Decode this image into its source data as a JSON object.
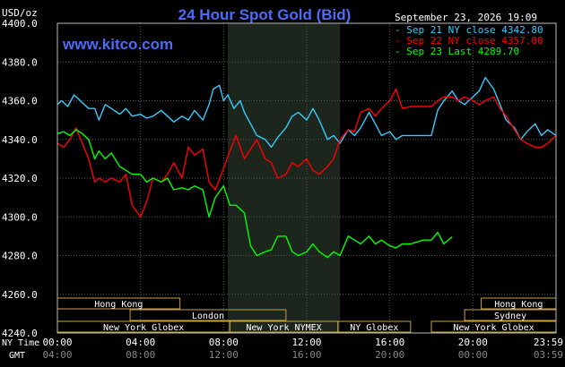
{
  "chart_data": {
    "type": "line",
    "title": "24 Hour Spot Gold (Bid)",
    "watermark": "www.kitco.com",
    "timestamp": "September 23, 2026 19:09",
    "y_unit": "USD/oz",
    "ylim": [
      4240,
      4400
    ],
    "y_ticks": [
      "4400.0",
      "4380.0",
      "4360.0",
      "4340.0",
      "4320.0",
      "4300.0",
      "4280.0",
      "4260.0",
      "4240.0"
    ],
    "x_range_hours": [
      0,
      24
    ],
    "x_ticks_ny": [
      "00:00",
      "04:00",
      "08:00",
      "12:00",
      "16:00",
      "20:00",
      "23:59"
    ],
    "x_ticks_gmt": [
      "04:00",
      "08:00",
      "12:00",
      "16:00",
      "20:00",
      "00:00",
      "03:59"
    ],
    "row_label_ny": "NY Time",
    "row_label_gmt": "GMT",
    "shaded_region_hours": [
      8.2,
      13.6
    ],
    "grid": true,
    "legend_position": "top-right",
    "legend": [
      {
        "text": "Sep 21 NY close 4342.80",
        "color": "#33ccff"
      },
      {
        "text": "Sep 22 NY close 4357.00",
        "color": "#ff0000"
      },
      {
        "text": "Sep 23 Last 4289.70",
        "color": "#00ff00"
      }
    ],
    "sessions": [
      {
        "label": "Hong Kong",
        "row": 0,
        "start": 0,
        "end": 5.9
      },
      {
        "label": "Hong Kong",
        "row": 0,
        "start": 20.4,
        "end": 24
      },
      {
        "label": "London",
        "row": 1,
        "start": 3.5,
        "end": 11.0
      },
      {
        "label": "Sydney",
        "row": 1,
        "start": 19.6,
        "end": 24
      },
      {
        "label": "New York Globex",
        "row": 2,
        "start": 0,
        "end": 8.3
      },
      {
        "label": "New York NYMEX",
        "row": 2,
        "start": 8.3,
        "end": 13.5
      },
      {
        "label": "NY Globex",
        "row": 2,
        "start": 13.5,
        "end": 17.0
      },
      {
        "label": "New York Globex",
        "row": 2,
        "start": 18.0,
        "end": 24
      }
    ],
    "series": [
      {
        "name": "Sep 21 NY close 4342.80",
        "color": "#33ccff",
        "x": [
          0,
          0.2,
          0.5,
          0.8,
          1.0,
          1.2,
          1.5,
          1.8,
          2.0,
          2.3,
          2.6,
          3.0,
          3.3,
          3.6,
          4.0,
          4.3,
          4.6,
          5.0,
          5.3,
          5.6,
          6.0,
          6.3,
          6.6,
          7.0,
          7.3,
          7.5,
          7.8,
          8.0,
          8.2,
          8.5,
          8.8,
          9.0,
          9.3,
          9.6,
          10.0,
          10.3,
          10.6,
          11.0,
          11.3,
          11.6,
          12.0,
          12.3,
          12.6,
          13.0,
          13.3,
          13.6,
          14.0,
          14.3,
          14.6,
          15.0,
          15.3,
          15.6,
          16.0,
          16.3,
          16.6,
          17.0,
          17.3,
          17.6,
          18.0,
          18.3,
          18.6,
          19.0,
          19.3,
          19.6,
          20.0,
          20.3,
          20.6,
          21.0,
          21.3,
          21.6,
          22.0,
          22.3,
          22.6,
          23.0,
          23.3,
          23.6,
          24.0
        ],
        "y": [
          4358,
          4360,
          4357,
          4363,
          4361,
          4359,
          4356,
          4356,
          4350,
          4358,
          4356,
          4353,
          4356,
          4352,
          4353,
          4351,
          4352,
          4355,
          4352,
          4349,
          4352,
          4350,
          4355,
          4350,
          4358,
          4366,
          4368,
          4360,
          4363,
          4356,
          4360,
          4354,
          4348,
          4342,
          4340,
          4336,
          4341,
          4346,
          4352,
          4354,
          4350,
          4356,
          4350,
          4340,
          4342,
          4338,
          4345,
          4342,
          4346,
          4354,
          4348,
          4342,
          4344,
          4340,
          4342,
          4342,
          4342,
          4342,
          4342,
          4355,
          4360,
          4365,
          4360,
          4358,
          4362,
          4365,
          4372,
          4366,
          4358,
          4350,
          4346,
          4340,
          4344,
          4348,
          4342,
          4345,
          4342
        ]
      },
      {
        "name": "Sep 22 NY close 4357.00",
        "color": "#ff0000",
        "x": [
          0,
          0.3,
          0.6,
          0.9,
          1.2,
          1.5,
          1.8,
          2.0,
          2.3,
          2.6,
          3.0,
          3.3,
          3.6,
          4.0,
          4.3,
          4.6,
          5.0,
          5.3,
          5.6,
          6.0,
          6.3,
          6.6,
          7.0,
          7.3,
          7.6,
          8.0,
          8.3,
          8.6,
          9.0,
          9.3,
          9.6,
          10.0,
          10.3,
          10.6,
          11.0,
          11.3,
          11.6,
          12.0,
          12.3,
          12.6,
          13.0,
          13.3,
          13.6,
          14.0,
          14.3,
          14.6,
          15.0,
          15.3,
          15.6,
          16.0,
          16.3,
          16.6,
          17.0,
          17.3,
          17.6,
          18.0,
          18.3,
          18.6,
          19.0,
          19.3,
          19.6,
          20.0,
          20.3,
          20.6,
          21.0,
          21.3,
          21.6,
          22.0,
          22.3,
          22.6,
          23.0,
          23.3,
          23.6,
          24.0
        ],
        "y": [
          4338,
          4336,
          4340,
          4346,
          4338,
          4330,
          4318,
          4320,
          4318,
          4320,
          4318,
          4322,
          4306,
          4300,
          4308,
          4320,
          4318,
          4322,
          4328,
          4320,
          4336,
          4332,
          4335,
          4318,
          4314,
          4325,
          4334,
          4342,
          4330,
          4335,
          4340,
          4330,
          4328,
          4320,
          4322,
          4328,
          4326,
          4330,
          4324,
          4322,
          4326,
          4330,
          4340,
          4345,
          4344,
          4354,
          4356,
          4352,
          4356,
          4360,
          4366,
          4356,
          4357,
          4357,
          4357,
          4357,
          4360,
          4362,
          4362,
          4360,
          4362,
          4360,
          4358,
          4360,
          4362,
          4356,
          4352,
          4345,
          4340,
          4338,
          4336,
          4336,
          4338,
          4342
        ]
      },
      {
        "name": "Sep 23 Last 4289.70",
        "color": "#00ff00",
        "x": [
          0,
          0.3,
          0.6,
          0.9,
          1.2,
          1.5,
          1.8,
          2.0,
          2.3,
          2.6,
          3.0,
          3.3,
          3.6,
          4.0,
          4.3,
          4.6,
          5.0,
          5.3,
          5.6,
          6.0,
          6.3,
          6.6,
          7.0,
          7.3,
          7.6,
          8.0,
          8.3,
          8.6,
          9.0,
          9.3,
          9.6,
          10.0,
          10.3,
          10.6,
          11.0,
          11.3,
          11.6,
          12.0,
          12.3,
          12.6,
          13.0,
          13.3,
          13.6,
          14.0,
          14.3,
          14.6,
          15.0,
          15.3,
          15.6,
          16.0,
          16.3,
          16.6,
          17.0,
          17.3,
          17.6,
          18.0,
          18.3,
          18.6,
          19.0
        ],
        "y": [
          4343,
          4344,
          4342,
          4345,
          4343,
          4340,
          4330,
          4334,
          4330,
          4333,
          4326,
          4324,
          4322,
          4322,
          4318,
          4320,
          4318,
          4320,
          4314,
          4315,
          4314,
          4316,
          4314,
          4300,
          4310,
          4316,
          4306,
          4306,
          4302,
          4285,
          4280,
          4282,
          4283,
          4290,
          4290,
          4282,
          4280,
          4282,
          4286,
          4282,
          4279,
          4282,
          4280,
          4290,
          4288,
          4286,
          4290,
          4286,
          4288,
          4285,
          4284,
          4286,
          4286,
          4287,
          4288,
          4288,
          4292,
          4286,
          4289.7
        ]
      }
    ]
  }
}
